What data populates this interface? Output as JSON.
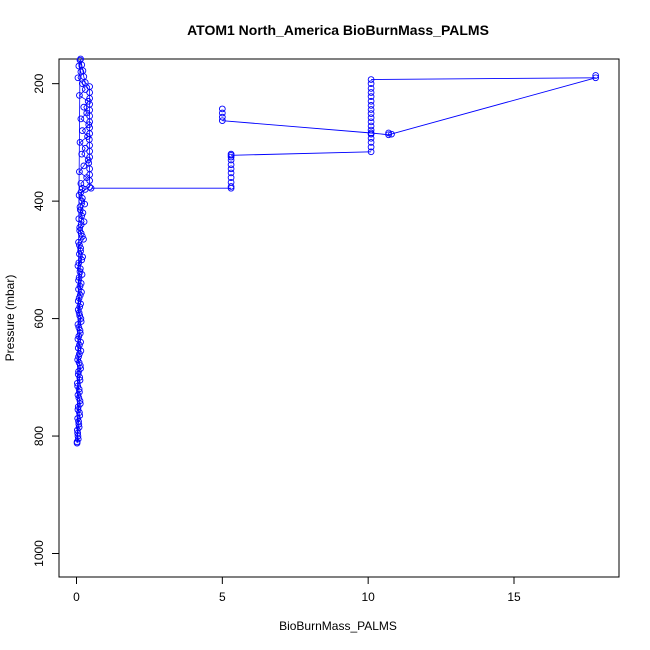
{
  "chart_data": {
    "type": "scatter",
    "title": "ATOM1 North_America BioBurnMass_PALMS",
    "xlabel": "BioBurnMass_PALMS",
    "ylabel": "Pressure (mbar)",
    "xlim": [
      -0.6,
      18.6
    ],
    "ylim": [
      1040,
      158
    ],
    "y_reversed": true,
    "x_ticks": [
      0,
      5,
      10,
      15
    ],
    "y_ticks": [
      200,
      400,
      600,
      800,
      1000
    ],
    "grid": false,
    "legend": "none",
    "marker": "open-circle",
    "connected": true,
    "color": "#0000ff",
    "series": [
      {
        "description": "dense profile near zero",
        "points": [
          [
            0.02,
            810
          ],
          [
            0.05,
            800
          ],
          [
            0.03,
            790
          ],
          [
            0.08,
            780
          ],
          [
            0.04,
            770
          ],
          [
            0.1,
            760
          ],
          [
            0.06,
            750
          ],
          [
            0.12,
            740
          ],
          [
            0.05,
            730
          ],
          [
            0.09,
            720
          ],
          [
            0.03,
            710
          ],
          [
            0.11,
            700
          ],
          [
            0.07,
            690
          ],
          [
            0.13,
            680
          ],
          [
            0.04,
            670
          ],
          [
            0.1,
            660
          ],
          [
            0.06,
            650
          ],
          [
            0.14,
            640
          ],
          [
            0.08,
            630
          ],
          [
            0.12,
            620
          ],
          [
            0.05,
            610
          ],
          [
            0.15,
            600
          ],
          [
            0.09,
            590
          ],
          [
            0.11,
            580
          ],
          [
            0.06,
            570
          ],
          [
            0.13,
            560
          ],
          [
            0.07,
            550
          ],
          [
            0.16,
            540
          ],
          [
            0.09,
            530
          ],
          [
            0.12,
            520
          ],
          [
            0.05,
            510
          ],
          [
            0.18,
            500
          ],
          [
            0.1,
            490
          ],
          [
            0.14,
            480
          ],
          [
            0.07,
            470
          ],
          [
            0.2,
            460
          ],
          [
            0.11,
            450
          ],
          [
            0.16,
            440
          ],
          [
            0.08,
            430
          ],
          [
            0.22,
            420
          ],
          [
            0.12,
            410
          ],
          [
            0.18,
            400
          ],
          [
            0.09,
            390
          ],
          [
            0.3,
            380
          ],
          [
            0.2,
            378
          ],
          [
            0.15,
            370
          ],
          [
            0.35,
            360
          ],
          [
            0.1,
            350
          ],
          [
            0.25,
            340
          ],
          [
            0.4,
            330
          ],
          [
            0.18,
            320
          ],
          [
            0.3,
            310
          ],
          [
            0.12,
            300
          ],
          [
            0.38,
            290
          ],
          [
            0.2,
            280
          ],
          [
            0.42,
            270
          ],
          [
            0.15,
            260
          ],
          [
            0.35,
            250
          ],
          [
            0.25,
            240
          ],
          [
            0.4,
            230
          ],
          [
            0.1,
            220
          ],
          [
            0.3,
            210
          ],
          [
            0.2,
            200
          ],
          [
            0.05,
            190
          ],
          [
            0.15,
            180
          ],
          [
            0.08,
            170
          ],
          [
            0.12,
            160
          ],
          [
            0.02,
            812
          ],
          [
            0.06,
            805
          ],
          [
            0.04,
            795
          ],
          [
            0.09,
            785
          ],
          [
            0.07,
            775
          ],
          [
            0.11,
            765
          ],
          [
            0.05,
            755
          ],
          [
            0.13,
            745
          ],
          [
            0.08,
            735
          ],
          [
            0.1,
            725
          ],
          [
            0.04,
            715
          ],
          [
            0.12,
            705
          ],
          [
            0.06,
            695
          ],
          [
            0.14,
            685
          ],
          [
            0.09,
            675
          ],
          [
            0.07,
            665
          ],
          [
            0.15,
            655
          ],
          [
            0.1,
            645
          ],
          [
            0.05,
            635
          ],
          [
            0.13,
            625
          ],
          [
            0.08,
            615
          ],
          [
            0.16,
            605
          ],
          [
            0.11,
            595
          ],
          [
            0.06,
            585
          ],
          [
            0.14,
            575
          ],
          [
            0.09,
            565
          ],
          [
            0.17,
            555
          ],
          [
            0.12,
            545
          ],
          [
            0.07,
            535
          ],
          [
            0.19,
            525
          ],
          [
            0.13,
            515
          ],
          [
            0.08,
            505
          ],
          [
            0.21,
            495
          ],
          [
            0.14,
            485
          ],
          [
            0.1,
            475
          ],
          [
            0.24,
            465
          ],
          [
            0.16,
            455
          ],
          [
            0.11,
            445
          ],
          [
            0.26,
            435
          ],
          [
            0.18,
            425
          ],
          [
            0.13,
            415
          ],
          [
            0.28,
            405
          ],
          [
            0.2,
            395
          ],
          [
            0.15,
            385
          ],
          [
            0.45,
            376
          ],
          [
            0.45,
            365
          ],
          [
            0.45,
            355
          ],
          [
            0.45,
            345
          ],
          [
            0.42,
            335
          ],
          [
            0.45,
            325
          ],
          [
            0.45,
            315
          ],
          [
            0.45,
            305
          ],
          [
            0.44,
            295
          ],
          [
            0.45,
            285
          ],
          [
            0.45,
            275
          ],
          [
            0.45,
            265
          ],
          [
            0.45,
            255
          ],
          [
            0.45,
            245
          ],
          [
            0.45,
            235
          ],
          [
            0.45,
            225
          ],
          [
            0.45,
            215
          ],
          [
            0.45,
            205
          ],
          [
            0.3,
            198
          ],
          [
            0.25,
            188
          ],
          [
            0.22,
            178
          ],
          [
            0.18,
            168
          ],
          [
            0.14,
            158
          ]
        ]
      },
      {
        "description": "stray high values",
        "points": [
          [
            0.5,
            378
          ],
          [
            5.3,
            378
          ],
          [
            5.3,
            375
          ],
          [
            5.3,
            368
          ],
          [
            5.3,
            360
          ],
          [
            5.3,
            352
          ],
          [
            5.3,
            345
          ],
          [
            5.3,
            338
          ],
          [
            5.3,
            330
          ],
          [
            5.3,
            325
          ],
          [
            5.3,
            320
          ],
          [
            5.3,
            322
          ],
          [
            10.1,
            316
          ],
          [
            10.1,
            308
          ],
          [
            10.1,
            300
          ],
          [
            10.1,
            293
          ],
          [
            10.1,
            286
          ],
          [
            10.1,
            279
          ],
          [
            10.1,
            272
          ],
          [
            10.1,
            265
          ],
          [
            10.1,
            258
          ],
          [
            10.1,
            251
          ],
          [
            10.1,
            244
          ],
          [
            10.1,
            237
          ],
          [
            10.1,
            230
          ],
          [
            10.1,
            222
          ],
          [
            10.1,
            215
          ],
          [
            10.1,
            208
          ],
          [
            10.1,
            200
          ],
          [
            10.1,
            193
          ],
          [
            10.7,
            287
          ],
          [
            10.7,
            284
          ],
          [
            10.8,
            286
          ],
          [
            17.8,
            190
          ],
          [
            17.8,
            186
          ],
          [
            5.0,
            243
          ],
          [
            5.0,
            250
          ],
          [
            5.0,
            257
          ],
          [
            5.0,
            263
          ],
          [
            10.1,
            284
          ]
        ]
      }
    ],
    "connect_segments": [
      [
        [
          0.5,
          378
        ],
        [
          5.3,
          378
        ]
      ],
      [
        [
          5.3,
          322
        ],
        [
          10.1,
          316
        ]
      ],
      [
        [
          5.0,
          263
        ],
        [
          10.1,
          284
        ]
      ],
      [
        [
          10.1,
          284
        ],
        [
          10.7,
          287
        ]
      ],
      [
        [
          10.7,
          287
        ],
        [
          17.8,
          190
        ]
      ],
      [
        [
          17.8,
          190
        ],
        [
          10.1,
          193
        ]
      ]
    ]
  }
}
